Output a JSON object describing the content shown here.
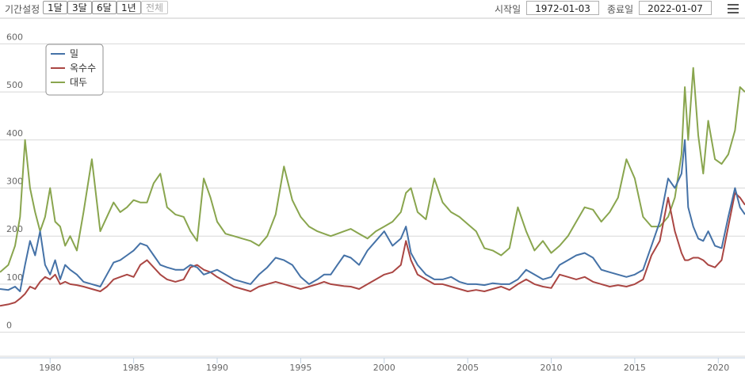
{
  "toolbar": {
    "period_label": "기간설정",
    "buttons": [
      "1달",
      "3달",
      "6달",
      "1년",
      "전체"
    ],
    "start_label": "시작일",
    "start_value": "1972-01-03",
    "end_label": "종료일",
    "end_value": "2022-01-07"
  },
  "chart_data": {
    "type": "line",
    "xlim": [
      1977,
      2021.6
    ],
    "ylim": [
      -50,
      650
    ],
    "x_ticks": [
      1980,
      1985,
      1990,
      1995,
      2000,
      2005,
      2010,
      2015,
      2020
    ],
    "y_ticks": [
      0,
      100,
      200,
      300,
      400,
      500,
      600
    ],
    "grid": true,
    "legend_position": "top-left",
    "series": [
      {
        "name": "밀",
        "color": "#4572a7",
        "x": [
          1977.0,
          1977.5,
          1977.9,
          1978.2,
          1978.5,
          1978.8,
          1979.1,
          1979.4,
          1979.7,
          1980.0,
          1980.3,
          1980.6,
          1980.9,
          1981.2,
          1981.6,
          1982.0,
          1982.5,
          1983.0,
          1983.4,
          1983.8,
          1984.2,
          1984.6,
          1985.0,
          1985.4,
          1985.8,
          1986.2,
          1986.6,
          1987.0,
          1987.5,
          1988.0,
          1988.4,
          1988.8,
          1989.2,
          1989.6,
          1990.0,
          1990.5,
          1991.0,
          1991.5,
          1992.0,
          1992.5,
          1993.0,
          1993.5,
          1994.0,
          1994.5,
          1995.0,
          1995.5,
          1996.0,
          1996.4,
          1996.8,
          1997.2,
          1997.6,
          1998.0,
          1998.5,
          1999.0,
          1999.5,
          2000.0,
          2000.5,
          2001.0,
          2001.3,
          2001.6,
          2002.0,
          2002.5,
          2003.0,
          2003.5,
          2004.0,
          2004.5,
          2005.0,
          2005.5,
          2006.0,
          2006.5,
          2007.0,
          2007.5,
          2008.0,
          2008.5,
          2009.0,
          2009.5,
          2010.0,
          2010.5,
          2011.0,
          2011.5,
          2012.0,
          2012.5,
          2013.0,
          2013.5,
          2014.0,
          2014.5,
          2015.0,
          2015.5,
          2016.0,
          2016.5,
          2017.0,
          2017.4,
          2017.8,
          2018.0,
          2018.2,
          2018.5,
          2018.8,
          2019.1,
          2019.4,
          2019.8,
          2020.2,
          2020.6,
          2021.0,
          2021.3,
          2021.6
        ],
        "values": [
          90,
          88,
          95,
          85,
          140,
          190,
          160,
          210,
          140,
          120,
          150,
          110,
          140,
          130,
          120,
          105,
          100,
          95,
          120,
          145,
          150,
          160,
          170,
          185,
          180,
          160,
          140,
          135,
          130,
          130,
          140,
          135,
          120,
          125,
          130,
          120,
          110,
          105,
          100,
          120,
          135,
          155,
          150,
          140,
          115,
          100,
          110,
          120,
          120,
          140,
          160,
          155,
          140,
          170,
          190,
          210,
          180,
          195,
          220,
          165,
          140,
          120,
          110,
          110,
          115,
          105,
          100,
          100,
          98,
          102,
          100,
          100,
          110,
          130,
          120,
          110,
          115,
          140,
          150,
          160,
          165,
          155,
          130,
          125,
          120,
          115,
          120,
          130,
          180,
          230,
          320,
          300,
          330,
          400,
          260,
          220,
          195,
          190,
          210,
          180,
          175,
          240,
          300,
          260,
          245
        ]
      },
      {
        "name": "옥수수",
        "color": "#aa4643",
        "x": [
          1977.0,
          1977.5,
          1977.9,
          1978.2,
          1978.5,
          1978.8,
          1979.1,
          1979.4,
          1979.7,
          1980.0,
          1980.3,
          1980.6,
          1980.9,
          1981.2,
          1981.6,
          1982.0,
          1982.5,
          1983.0,
          1983.4,
          1983.8,
          1984.2,
          1984.6,
          1985.0,
          1985.4,
          1985.8,
          1986.2,
          1986.6,
          1987.0,
          1987.5,
          1988.0,
          1988.4,
          1988.8,
          1989.2,
          1989.6,
          1990.0,
          1990.5,
          1991.0,
          1991.5,
          1992.0,
          1992.5,
          1993.0,
          1993.5,
          1994.0,
          1994.5,
          1995.0,
          1995.5,
          1996.0,
          1996.4,
          1996.8,
          1997.2,
          1997.6,
          1998.0,
          1998.5,
          1999.0,
          1999.5,
          2000.0,
          2000.5,
          2001.0,
          2001.3,
          2001.6,
          2002.0,
          2002.5,
          2003.0,
          2003.5,
          2004.0,
          2004.5,
          2005.0,
          2005.5,
          2006.0,
          2006.5,
          2007.0,
          2007.5,
          2008.0,
          2008.5,
          2009.0,
          2009.5,
          2010.0,
          2010.5,
          2011.0,
          2011.5,
          2012.0,
          2012.5,
          2013.0,
          2013.5,
          2014.0,
          2014.5,
          2015.0,
          2015.5,
          2016.0,
          2016.5,
          2017.0,
          2017.4,
          2017.8,
          2018.0,
          2018.2,
          2018.5,
          2018.8,
          2019.1,
          2019.4,
          2019.8,
          2020.2,
          2020.6,
          2021.0,
          2021.3,
          2021.6
        ],
        "values": [
          55,
          58,
          62,
          70,
          80,
          95,
          90,
          105,
          115,
          110,
          120,
          100,
          105,
          100,
          98,
          95,
          90,
          85,
          95,
          110,
          115,
          120,
          115,
          140,
          150,
          135,
          120,
          110,
          105,
          110,
          135,
          140,
          130,
          125,
          115,
          105,
          95,
          90,
          85,
          95,
          100,
          105,
          100,
          95,
          90,
          95,
          100,
          105,
          100,
          98,
          96,
          95,
          90,
          100,
          110,
          120,
          125,
          140,
          190,
          150,
          120,
          110,
          100,
          100,
          95,
          90,
          85,
          88,
          85,
          90,
          95,
          88,
          100,
          110,
          100,
          95,
          92,
          120,
          115,
          110,
          115,
          105,
          100,
          95,
          98,
          95,
          100,
          110,
          160,
          190,
          280,
          210,
          165,
          150,
          150,
          155,
          155,
          150,
          140,
          135,
          150,
          220,
          290,
          280,
          265
        ]
      },
      {
        "name": "대두",
        "color": "#89a54e",
        "x": [
          1977.0,
          1977.5,
          1977.9,
          1978.2,
          1978.5,
          1978.8,
          1979.1,
          1979.4,
          1979.7,
          1980.0,
          1980.3,
          1980.6,
          1980.9,
          1981.2,
          1981.6,
          1982.0,
          1982.5,
          1983.0,
          1983.4,
          1983.8,
          1984.2,
          1984.6,
          1985.0,
          1985.4,
          1985.8,
          1986.2,
          1986.6,
          1987.0,
          1987.5,
          1988.0,
          1988.4,
          1988.8,
          1989.2,
          1989.6,
          1990.0,
          1990.5,
          1991.0,
          1991.5,
          1992.0,
          1992.5,
          1993.0,
          1993.5,
          1994.0,
          1994.5,
          1995.0,
          1995.5,
          1996.0,
          1996.4,
          1996.8,
          1997.2,
          1997.6,
          1998.0,
          1998.5,
          1999.0,
          1999.5,
          2000.0,
          2000.5,
          2001.0,
          2001.3,
          2001.6,
          2002.0,
          2002.5,
          2003.0,
          2003.5,
          2004.0,
          2004.5,
          2005.0,
          2005.5,
          2006.0,
          2006.5,
          2007.0,
          2007.5,
          2008.0,
          2008.5,
          2009.0,
          2009.5,
          2010.0,
          2010.5,
          2011.0,
          2011.5,
          2012.0,
          2012.5,
          2013.0,
          2013.5,
          2014.0,
          2014.5,
          2015.0,
          2015.5,
          2016.0,
          2016.5,
          2017.0,
          2017.4,
          2017.8,
          2018.0,
          2018.2,
          2018.5,
          2018.8,
          2019.1,
          2019.4,
          2019.8,
          2020.2,
          2020.6,
          2021.0,
          2021.3,
          2021.6
        ],
        "values": [
          125,
          140,
          180,
          240,
          400,
          300,
          250,
          210,
          240,
          300,
          230,
          220,
          180,
          200,
          170,
          250,
          360,
          210,
          240,
          270,
          250,
          260,
          275,
          270,
          270,
          310,
          330,
          260,
          245,
          240,
          210,
          190,
          320,
          280,
          230,
          205,
          200,
          195,
          190,
          180,
          200,
          245,
          345,
          275,
          240,
          220,
          210,
          205,
          200,
          205,
          210,
          215,
          205,
          195,
          210,
          220,
          230,
          250,
          290,
          300,
          250,
          235,
          320,
          270,
          250,
          240,
          225,
          210,
          175,
          170,
          160,
          175,
          260,
          210,
          170,
          190,
          165,
          180,
          200,
          230,
          260,
          255,
          230,
          250,
          280,
          360,
          320,
          240,
          220,
          220,
          240,
          280,
          370,
          510,
          400,
          550,
          410,
          330,
          440,
          360,
          350,
          370,
          420,
          510,
          500
        ]
      }
    ]
  }
}
